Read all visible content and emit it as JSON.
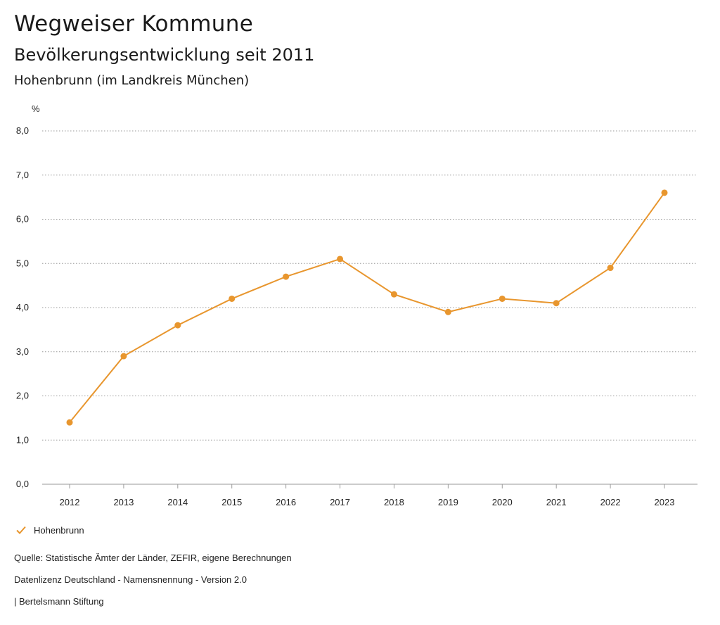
{
  "header": {
    "title": "Wegweiser Kommune",
    "subtitle": "Bevölkerungsentwicklung seit 2011",
    "region": "Hohenbrunn (im Landkreis München)"
  },
  "chart_data": {
    "type": "line",
    "title": "Bevölkerungsentwicklung seit 2011",
    "ylabel": "%",
    "xlabel": "",
    "ylim": [
      0,
      8
    ],
    "yticks": [
      0,
      1,
      2,
      3,
      4,
      5,
      6,
      7,
      8
    ],
    "ytick_labels": [
      "0,0",
      "1,0",
      "2,0",
      "3,0",
      "4,0",
      "5,0",
      "6,0",
      "7,0",
      "8,0"
    ],
    "categories": [
      "2012",
      "2013",
      "2014",
      "2015",
      "2016",
      "2017",
      "2018",
      "2019",
      "2020",
      "2021",
      "2022",
      "2023"
    ],
    "series": [
      {
        "name": "Hohenbrunn",
        "color": "#e8962e",
        "values": [
          1.4,
          2.9,
          3.6,
          4.2,
          4.7,
          5.1,
          4.3,
          3.9,
          4.2,
          4.1,
          4.9,
          6.6
        ]
      }
    ],
    "grid": true,
    "legend_position": "bottom-left"
  },
  "legend": {
    "label": "Hohenbrunn",
    "icon": "check-icon"
  },
  "footer": {
    "source": "Quelle: Statistische Ämter der Länder, ZEFIR, eigene Berechnungen",
    "license": "Datenlizenz Deutschland - Namensnennung - Version 2.0",
    "publisher": "| Bertelsmann Stiftung"
  }
}
